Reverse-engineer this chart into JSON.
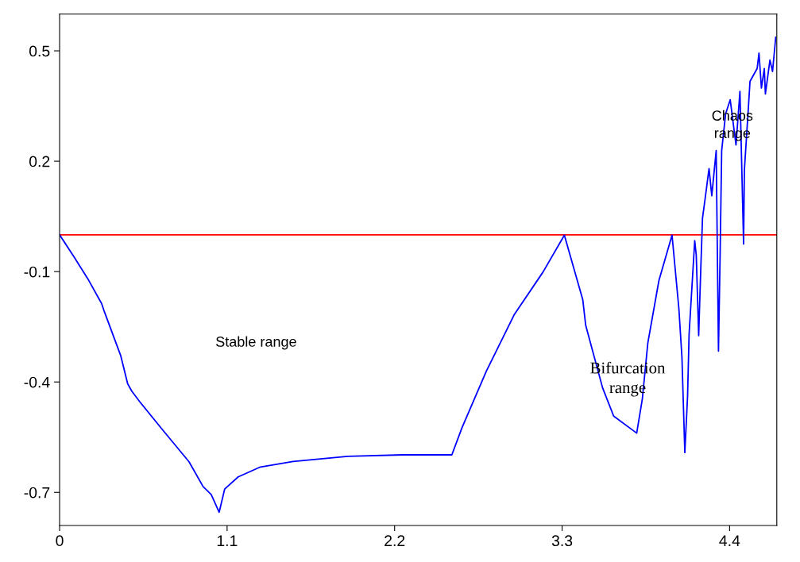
{
  "chart_data": {
    "type": "line",
    "x": [
      0,
      0.096,
      0.186,
      0.276,
      0.294,
      0.401,
      0.447,
      0.474,
      0.527,
      0.672,
      0.85,
      0.942,
      0.996,
      1.048,
      1.084,
      1.173,
      1.319,
      1.533,
      1.893,
      2.252,
      2.576,
      2.643,
      2.803,
      2.987,
      3.175,
      3.315,
      3.436,
      3.455,
      3.566,
      3.639,
      3.79,
      3.827,
      3.863,
      3.936,
      4.022,
      4.067,
      4.087,
      4.106,
      4.124,
      4.134,
      4.171,
      4.181,
      4.197,
      4.207,
      4.222,
      4.237,
      4.265,
      4.283,
      4.312,
      4.327,
      4.338,
      4.348,
      4.374,
      4.404,
      4.442,
      4.468,
      4.492,
      4.497,
      4.525,
      4.534,
      4.581,
      4.593,
      4.609,
      4.628,
      4.635,
      4.665,
      4.682,
      4.703
    ],
    "series": [
      {
        "color": "#0000ff",
        "values": [
          0,
          -0.061,
          -0.12,
          -0.187,
          -0.209,
          -0.328,
          -0.405,
          -0.425,
          -0.454,
          -0.528,
          -0.617,
          -0.684,
          -0.706,
          -0.754,
          -0.691,
          -0.658,
          -0.631,
          -0.616,
          -0.602,
          -0.598,
          -0.598,
          -0.524,
          -0.37,
          -0.216,
          -0.101,
          -0.001,
          -0.177,
          -0.246,
          -0.416,
          -0.493,
          -0.539,
          -0.446,
          -0.294,
          -0.124,
          -0.001,
          -0.201,
          -0.332,
          -0.592,
          -0.439,
          -0.27,
          -0.016,
          -0.055,
          -0.274,
          -0.14,
          0.045,
          0.091,
          0.18,
          0.106,
          0.229,
          -0.316,
          -0.048,
          0.229,
          0.329,
          0.367,
          0.244,
          0.39,
          -0.025,
          0.175,
          0.356,
          0.417,
          0.452,
          0.494,
          0.399,
          0.452,
          0.383,
          0.475,
          0.444,
          0.537
        ]
      }
    ],
    "xlim": [
      0,
      4.71
    ],
    "xticks": [
      0,
      1.1,
      2.2,
      3.3,
      4.4
    ],
    "ylim": [
      -0.79,
      0.6
    ],
    "yticks": [
      0.5,
      0.2,
      -0.1,
      -0.4,
      -0.7
    ],
    "ref_lines": [
      {
        "axis": "y",
        "value": 0,
        "color": "#ff0000",
        "line_style": "solid"
      }
    ],
    "annotations": [
      "Stable range",
      "Bifurcation\nrange",
      "Chaos\nrange"
    ],
    "grid": false,
    "legend": false,
    "marker": "none",
    "line_style": "solid"
  }
}
